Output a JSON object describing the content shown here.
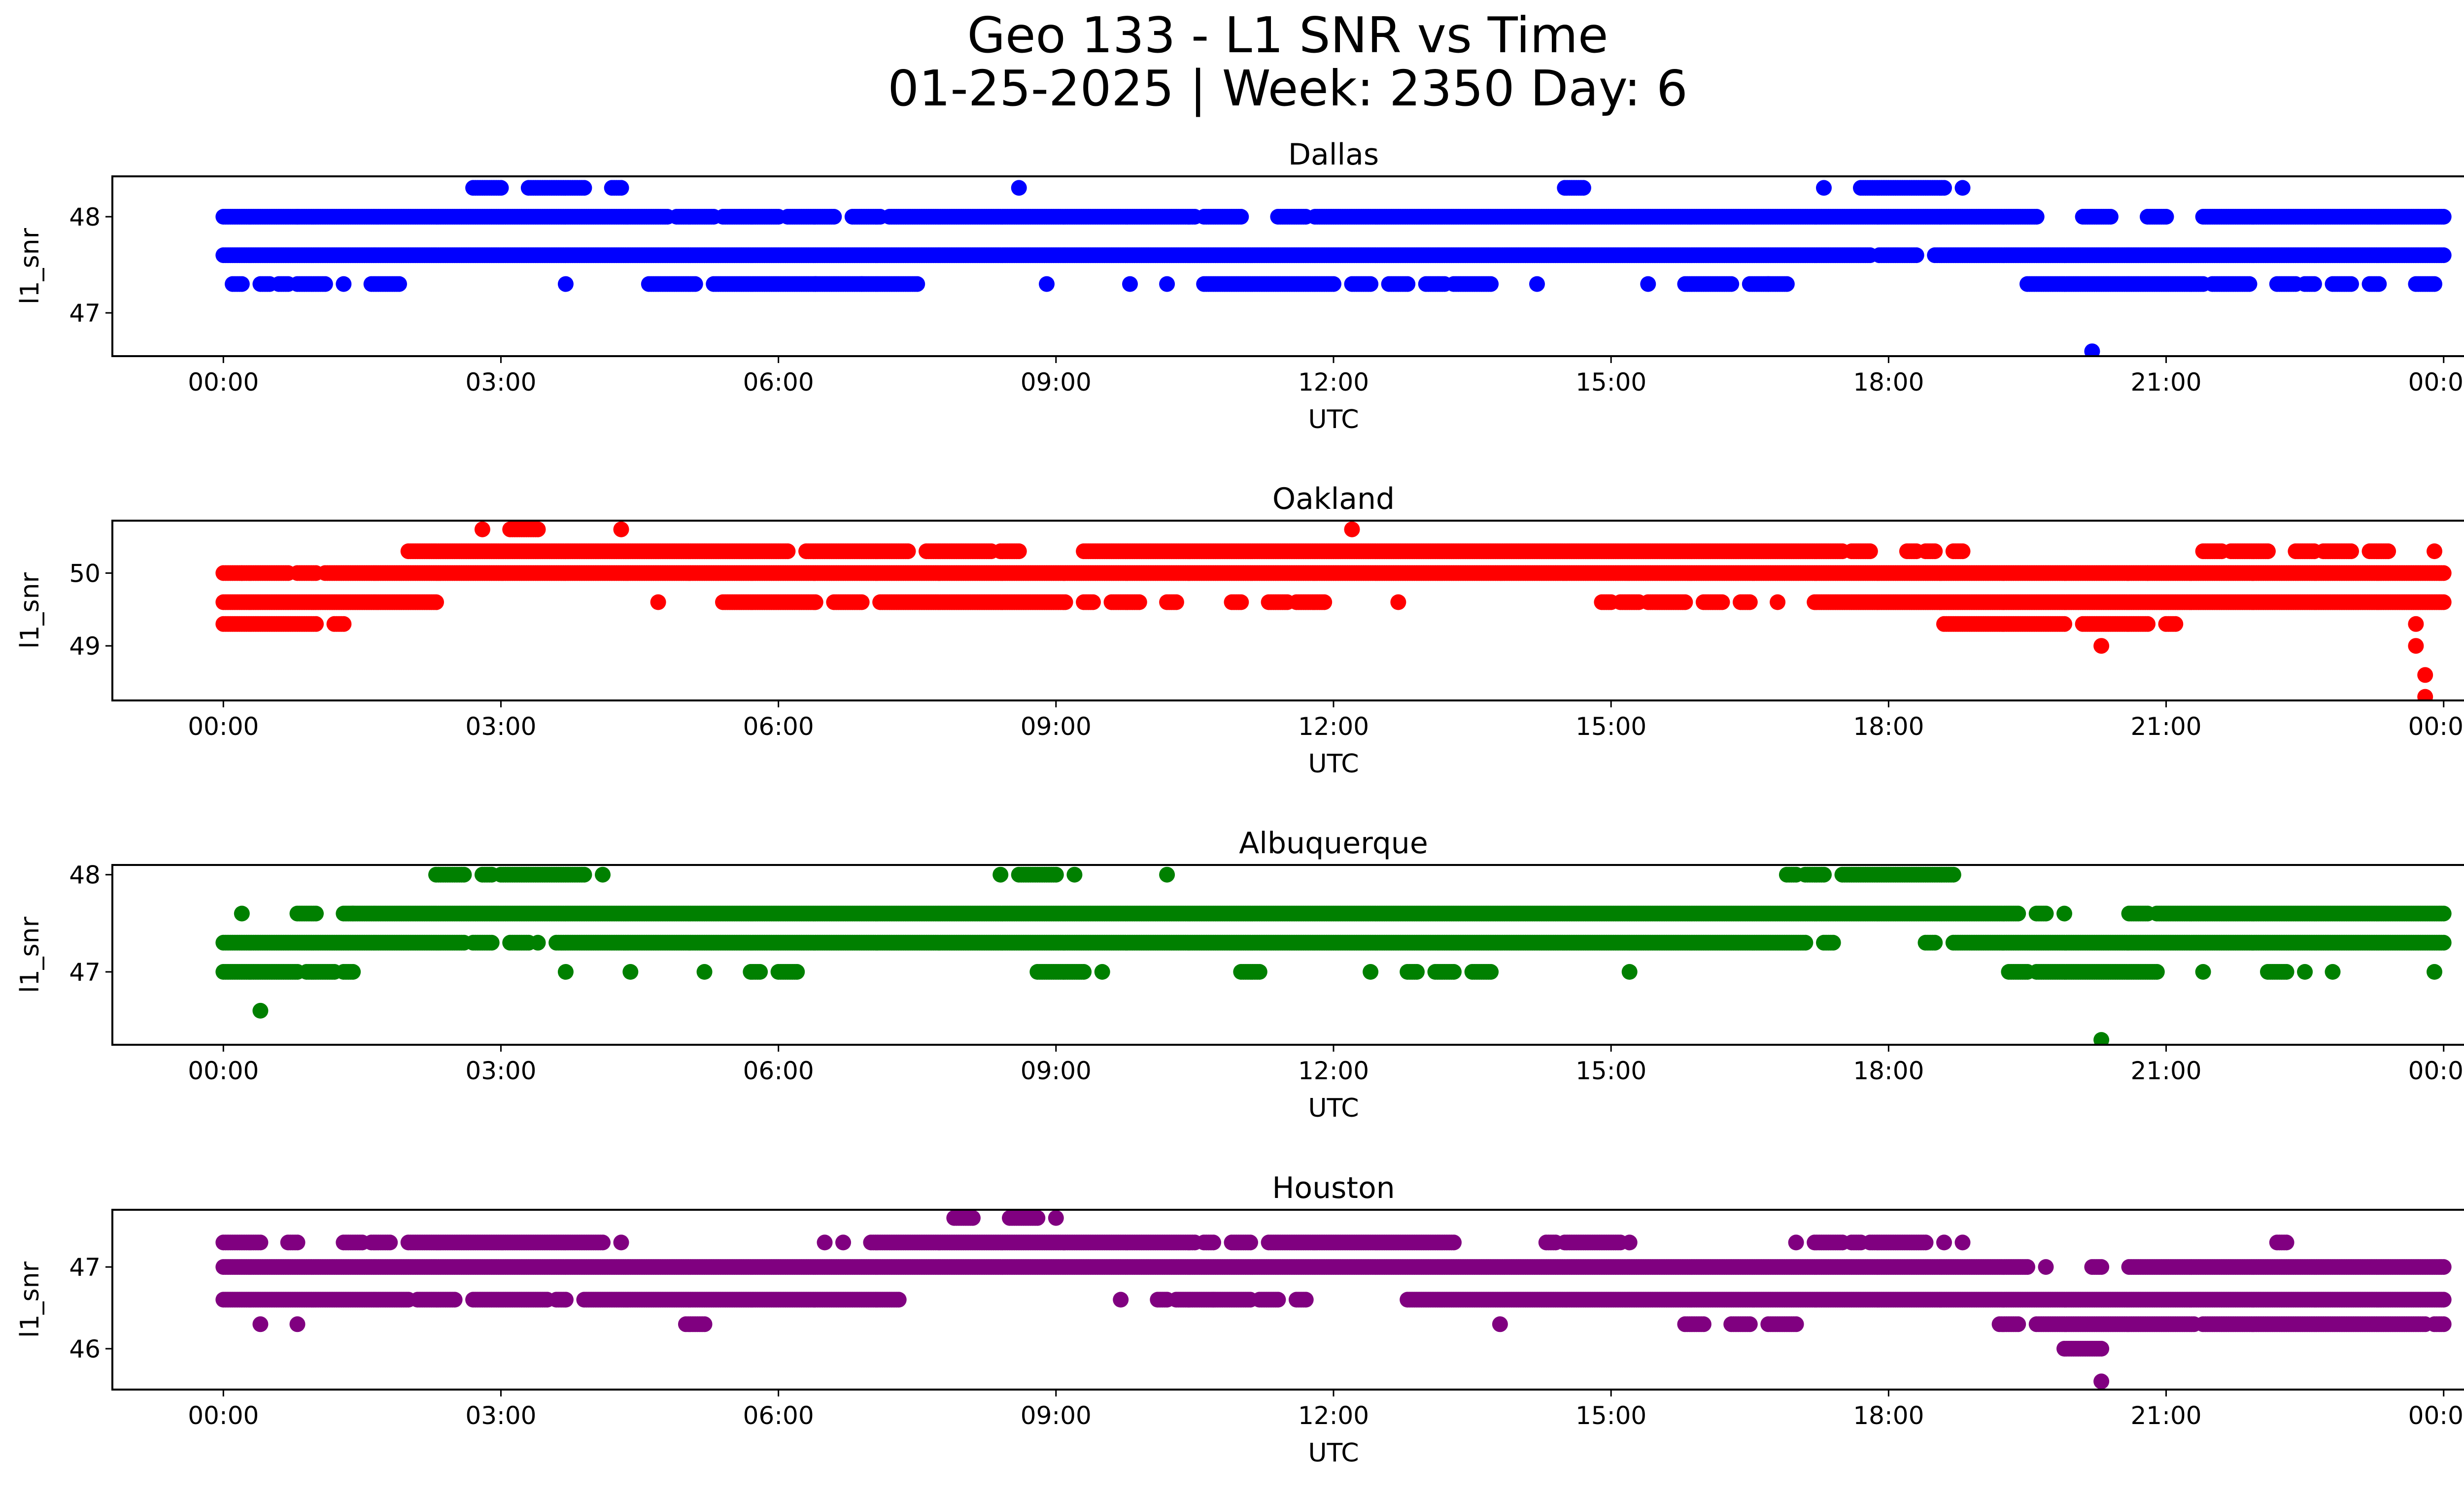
{
  "figure": {
    "title_line1": "Geo 133 - L1 SNR vs Time",
    "title_line2": "01-25-2025 | Week: 2350 Day: 6"
  },
  "chart_data": [
    {
      "type": "scatter",
      "title": "Dallas",
      "xlabel": "UTC",
      "ylabel": "l1_snr",
      "color": "#0000ff",
      "x_ticks": [
        "00:00",
        "03:00",
        "06:00",
        "09:00",
        "12:00",
        "15:00",
        "18:00",
        "21:00",
        "00:00"
      ],
      "y_ticks": [
        47,
        48
      ],
      "xlim": [
        -1.2,
        25.2
      ],
      "ylim": [
        46.55,
        48.42
      ],
      "levels": [
        {
          "y": 48.3,
          "ranges": [
            [
              2.7,
              3.0
            ],
            [
              3.3,
              3.9
            ],
            [
              4.2,
              4.3
            ],
            [
              8.6,
              8.6
            ],
            [
              14.5,
              14.7
            ],
            [
              17.3,
              17.3
            ],
            [
              17.7,
              18.6
            ],
            [
              18.8,
              18.8
            ]
          ]
        },
        {
          "y": 48.0,
          "ranges": [
            [
              0.0,
              0.8
            ],
            [
              0.8,
              4.8
            ],
            [
              4.9,
              5.3
            ],
            [
              5.4,
              6.0
            ],
            [
              6.1,
              6.6
            ],
            [
              6.8,
              7.1
            ],
            [
              7.2,
              10.5
            ],
            [
              10.6,
              11.0
            ],
            [
              11.4,
              11.7
            ],
            [
              11.8,
              19.6
            ],
            [
              20.1,
              20.4
            ],
            [
              20.8,
              21.0
            ],
            [
              21.4,
              24.0
            ]
          ]
        },
        {
          "y": 47.6,
          "ranges": [
            [
              0.0,
              17.8
            ],
            [
              17.9,
              18.3
            ],
            [
              18.5,
              24.0
            ]
          ]
        },
        {
          "y": 47.3,
          "ranges": [
            [
              0.1,
              0.2
            ],
            [
              0.4,
              0.5
            ],
            [
              0.6,
              0.7
            ],
            [
              0.8,
              1.1
            ],
            [
              1.3,
              1.3
            ],
            [
              1.6,
              1.9
            ],
            [
              3.7,
              3.7
            ],
            [
              4.6,
              5.1
            ],
            [
              5.3,
              6.4
            ],
            [
              6.4,
              6.9
            ],
            [
              6.9,
              7.5
            ],
            [
              8.9,
              8.9
            ],
            [
              9.8,
              9.8
            ],
            [
              10.2,
              10.2
            ],
            [
              10.6,
              12.0
            ],
            [
              12.2,
              12.4
            ],
            [
              12.6,
              12.8
            ],
            [
              13.0,
              13.2
            ],
            [
              13.3,
              13.7
            ],
            [
              14.2,
              14.2
            ],
            [
              15.4,
              15.4
            ],
            [
              15.8,
              16.3
            ],
            [
              16.5,
              16.7
            ],
            [
              16.7,
              16.9
            ],
            [
              19.5,
              21.4
            ],
            [
              21.5,
              21.9
            ],
            [
              22.2,
              22.4
            ],
            [
              22.5,
              22.6
            ],
            [
              22.8,
              23.0
            ],
            [
              23.2,
              23.3
            ],
            [
              23.7,
              23.9
            ]
          ]
        },
        {
          "y": 46.6,
          "ranges": [
            [
              20.2,
              20.2
            ]
          ]
        }
      ]
    },
    {
      "type": "scatter",
      "title": "Oakland",
      "xlabel": "UTC",
      "ylabel": "l1_snr",
      "color": "#ff0000",
      "x_ticks": [
        "00:00",
        "03:00",
        "06:00",
        "09:00",
        "12:00",
        "15:00",
        "18:00",
        "21:00",
        "00:00"
      ],
      "y_ticks": [
        49,
        50
      ],
      "xlim": [
        -1.2,
        25.2
      ],
      "ylim": [
        48.25,
        50.72
      ],
      "levels": [
        {
          "y": 50.6,
          "ranges": [
            [
              2.8,
              2.8
            ],
            [
              3.1,
              3.4
            ],
            [
              4.3,
              4.3
            ],
            [
              12.2,
              12.2
            ]
          ]
        },
        {
          "y": 50.3,
          "ranges": [
            [
              2.0,
              6.1
            ],
            [
              6.3,
              7.4
            ],
            [
              7.6,
              8.3
            ],
            [
              8.4,
              8.6
            ],
            [
              9.3,
              17.5
            ],
            [
              17.6,
              17.8
            ],
            [
              18.2,
              18.3
            ],
            [
              18.4,
              18.5
            ],
            [
              18.7,
              18.8
            ],
            [
              21.4,
              21.6
            ],
            [
              21.7,
              22.1
            ],
            [
              22.4,
              22.6
            ],
            [
              22.7,
              23.0
            ],
            [
              23.2,
              23.4
            ],
            [
              23.9,
              23.9
            ]
          ]
        },
        {
          "y": 50.0,
          "ranges": [
            [
              0.0,
              0.2
            ],
            [
              0.2,
              0.7
            ],
            [
              0.8,
              1.0
            ],
            [
              1.1,
              20.8
            ],
            [
              20.8,
              24.0
            ]
          ]
        },
        {
          "y": 49.6,
          "ranges": [
            [
              0.0,
              2.3
            ],
            [
              4.7,
              4.7
            ],
            [
              5.4,
              6.4
            ],
            [
              6.6,
              6.9
            ],
            [
              7.1,
              9.1
            ],
            [
              9.3,
              9.4
            ],
            [
              9.6,
              9.9
            ],
            [
              10.2,
              10.3
            ],
            [
              10.9,
              11.0
            ],
            [
              11.3,
              11.5
            ],
            [
              11.6,
              11.9
            ],
            [
              12.7,
              12.7
            ],
            [
              14.9,
              15.0
            ],
            [
              15.1,
              15.3
            ],
            [
              15.4,
              15.8
            ],
            [
              16.0,
              16.2
            ],
            [
              16.4,
              16.5
            ],
            [
              16.8,
              16.8
            ],
            [
              17.2,
              24.0
            ]
          ]
        },
        {
          "y": 49.3,
          "ranges": [
            [
              0.0,
              1.0
            ],
            [
              1.2,
              1.3
            ],
            [
              18.6,
              19.9
            ],
            [
              20.1,
              20.8
            ],
            [
              21.0,
              21.1
            ],
            [
              23.7,
              23.7
            ]
          ]
        },
        {
          "y": 49.0,
          "ranges": [
            [
              20.3,
              20.3
            ],
            [
              23.7,
              23.7
            ]
          ]
        },
        {
          "y": 48.6,
          "ranges": [
            [
              23.8,
              23.8
            ]
          ]
        },
        {
          "y": 48.3,
          "ranges": [
            [
              23.8,
              23.8
            ]
          ]
        }
      ]
    },
    {
      "type": "scatter",
      "title": "Albuquerque",
      "xlabel": "UTC",
      "ylabel": "l1_snr",
      "color": "#008000",
      "x_ticks": [
        "00:00",
        "03:00",
        "06:00",
        "09:00",
        "12:00",
        "15:00",
        "18:00",
        "21:00",
        "00:00"
      ],
      "y_ticks": [
        47,
        48
      ],
      "xlim": [
        -1.2,
        25.2
      ],
      "ylim": [
        46.25,
        48.1
      ],
      "levels": [
        {
          "y": 48.0,
          "ranges": [
            [
              2.3,
              2.6
            ],
            [
              2.8,
              2.9
            ],
            [
              3.0,
              3.9
            ],
            [
              4.1,
              4.1
            ],
            [
              8.4,
              8.4
            ],
            [
              8.6,
              9.0
            ],
            [
              9.2,
              9.2
            ],
            [
              10.2,
              10.2
            ],
            [
              16.9,
              17.0
            ],
            [
              17.1,
              17.3
            ],
            [
              17.5,
              18.7
            ]
          ]
        },
        {
          "y": 47.6,
          "ranges": [
            [
              0.2,
              0.2
            ],
            [
              0.8,
              1.0
            ],
            [
              1.3,
              1.4
            ],
            [
              1.4,
              19.4
            ],
            [
              19.6,
              19.7
            ],
            [
              19.9,
              19.9
            ],
            [
              20.6,
              20.8
            ],
            [
              20.9,
              24.0
            ]
          ]
        },
        {
          "y": 47.3,
          "ranges": [
            [
              0.0,
              2.6
            ],
            [
              2.7,
              2.9
            ],
            [
              3.1,
              3.3
            ],
            [
              3.4,
              3.4
            ],
            [
              3.6,
              17.1
            ],
            [
              17.3,
              17.4
            ],
            [
              18.4,
              18.5
            ],
            [
              18.7,
              24.0
            ]
          ]
        },
        {
          "y": 47.0,
          "ranges": [
            [
              0.0,
              0.8
            ],
            [
              0.9,
              1.2
            ],
            [
              1.3,
              1.4
            ],
            [
              3.7,
              3.7
            ],
            [
              4.4,
              4.4
            ],
            [
              5.2,
              5.2
            ],
            [
              5.7,
              5.8
            ],
            [
              6.0,
              6.2
            ],
            [
              8.8,
              9.3
            ],
            [
              9.5,
              9.5
            ],
            [
              11.0,
              11.2
            ],
            [
              12.4,
              12.4
            ],
            [
              12.8,
              12.9
            ],
            [
              13.1,
              13.3
            ],
            [
              13.5,
              13.7
            ],
            [
              15.2,
              15.2
            ],
            [
              19.3,
              19.5
            ],
            [
              19.6,
              20.9
            ],
            [
              21.4,
              21.4
            ],
            [
              22.1,
              22.3
            ],
            [
              22.5,
              22.5
            ],
            [
              22.8,
              22.8
            ],
            [
              23.9,
              23.9
            ]
          ]
        },
        {
          "y": 46.6,
          "ranges": [
            [
              0.4,
              0.4
            ]
          ]
        },
        {
          "y": 46.3,
          "ranges": [
            [
              20.3,
              20.3
            ]
          ]
        }
      ]
    },
    {
      "type": "scatter",
      "title": "Houston",
      "xlabel": "UTC",
      "ylabel": "l1_snr",
      "color": "#800080",
      "x_ticks": [
        "00:00",
        "03:00",
        "06:00",
        "09:00",
        "12:00",
        "15:00",
        "18:00",
        "21:00",
        "00:00"
      ],
      "y_ticks": [
        46,
        47
      ],
      "xlim": [
        -1.2,
        25.2
      ],
      "ylim": [
        45.5,
        47.7
      ],
      "levels": [
        {
          "y": 47.6,
          "ranges": [
            [
              7.9,
              8.1
            ],
            [
              8.5,
              8.8
            ],
            [
              9.0,
              9.0
            ]
          ]
        },
        {
          "y": 47.3,
          "ranges": [
            [
              0.0,
              0.4
            ],
            [
              0.7,
              0.8
            ],
            [
              1.3,
              1.5
            ],
            [
              1.6,
              1.8
            ],
            [
              2.0,
              4.1
            ],
            [
              4.3,
              4.3
            ],
            [
              6.5,
              6.5
            ],
            [
              6.7,
              6.7
            ],
            [
              7.0,
              10.5
            ],
            [
              10.6,
              10.7
            ],
            [
              10.9,
              11.1
            ],
            [
              11.3,
              13.3
            ],
            [
              14.3,
              14.4
            ],
            [
              14.5,
              15.1
            ],
            [
              15.2,
              15.2
            ],
            [
              17.0,
              17.0
            ],
            [
              17.2,
              17.5
            ],
            [
              17.6,
              17.7
            ],
            [
              17.8,
              18.4
            ],
            [
              18.6,
              18.6
            ],
            [
              18.8,
              18.8
            ],
            [
              22.2,
              22.3
            ]
          ]
        },
        {
          "y": 47.0,
          "ranges": [
            [
              0.0,
              19.5
            ],
            [
              19.7,
              19.7
            ],
            [
              20.2,
              20.3
            ],
            [
              20.6,
              24.0
            ]
          ]
        },
        {
          "y": 46.6,
          "ranges": [
            [
              0.0,
              2.0
            ],
            [
              2.1,
              2.5
            ],
            [
              2.7,
              3.5
            ],
            [
              3.6,
              3.7
            ],
            [
              3.9,
              7.3
            ],
            [
              9.7,
              9.7
            ],
            [
              10.1,
              10.2
            ],
            [
              10.3,
              10.7
            ],
            [
              10.7,
              11.1
            ],
            [
              11.2,
              11.4
            ],
            [
              11.6,
              11.7
            ],
            [
              12.8,
              24.0
            ]
          ]
        },
        {
          "y": 46.3,
          "ranges": [
            [
              0.4,
              0.4
            ],
            [
              0.8,
              0.8
            ],
            [
              5.0,
              5.2
            ],
            [
              13.8,
              13.8
            ],
            [
              15.8,
              16.0
            ],
            [
              16.3,
              16.5
            ],
            [
              16.7,
              17.0
            ],
            [
              19.2,
              19.4
            ],
            [
              19.6,
              21.3
            ],
            [
              21.4,
              23.8
            ],
            [
              23.9,
              24.0
            ]
          ]
        },
        {
          "y": 46.0,
          "ranges": [
            [
              19.9,
              20.3
            ]
          ]
        },
        {
          "y": 45.6,
          "ranges": [
            [
              20.3,
              20.3
            ]
          ]
        }
      ]
    }
  ]
}
